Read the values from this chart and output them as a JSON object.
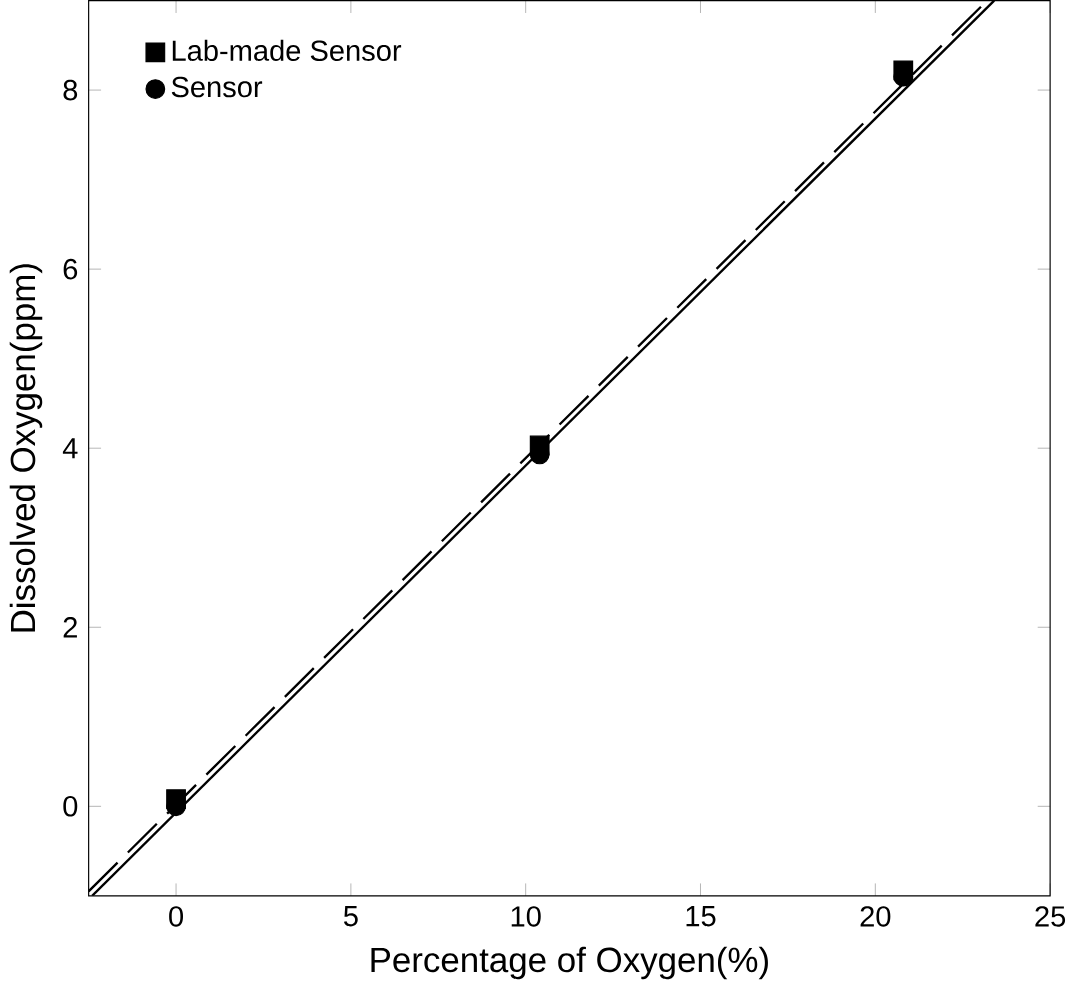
{
  "chart_data": {
    "type": "scatter",
    "xlabel": "Percentage of Oxygen(%)",
    "ylabel": "Dissolved Oxygen(ppm)",
    "xlim": [
      -2.5,
      25
    ],
    "ylim": [
      -1,
      9
    ],
    "xticks": [
      0,
      5,
      10,
      15,
      20,
      25
    ],
    "yticks": [
      0,
      2,
      4,
      6,
      8
    ],
    "legend": "top left",
    "grid": false,
    "series": [
      {
        "name": "Lab-made Sensor",
        "marker": "square",
        "color": "#000000",
        "x": [
          0,
          10.4,
          20.8
        ],
        "values": [
          0.08,
          4.03,
          8.22
        ]
      },
      {
        "name": "Sensor",
        "marker": "circle",
        "color": "#000000",
        "x": [
          0,
          10.4,
          20.8
        ],
        "values": [
          0,
          3.93,
          8.15
        ]
      },
      {
        "type": "line",
        "marker": "none",
        "line_style": "solid",
        "color": "#000000",
        "x": [
          -2.4,
          23.4
        ],
        "values": [
          -1,
          9
        ]
      },
      {
        "type": "line",
        "marker": "none",
        "line_style": "dashed",
        "color": "#000000",
        "x": [
          -2.5,
          23.2
        ],
        "values": [
          -0.95,
          9
        ]
      }
    ]
  }
}
